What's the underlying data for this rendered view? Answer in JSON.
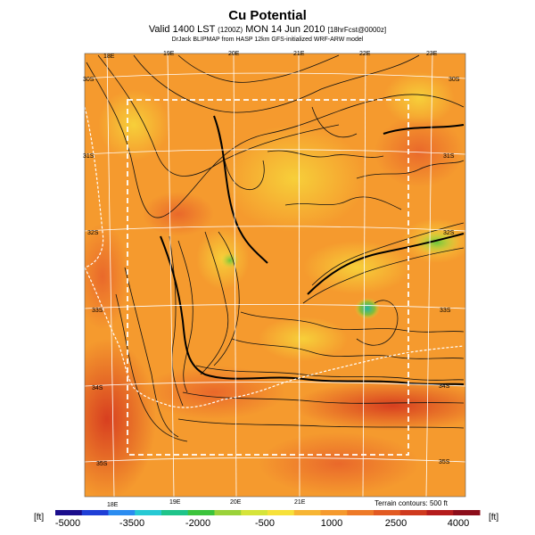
{
  "title": "Cu Potential",
  "subtitle_main": "Valid 1400 LST",
  "subtitle_small": "(1200Z)",
  "subtitle_date": "MON 14 Jun 2010",
  "subtitle_fcst": "[18hrFcst@0000z]",
  "credit": "DrJack BLIPMAP from HASP 12km GFS-initialized WRF-ARW model",
  "lon_labels": [
    "18E",
    "19E",
    "20E",
    "21E",
    "22E",
    "23E"
  ],
  "lat_labels": [
    "30S",
    "31S",
    "32S",
    "33S",
    "34S",
    "35S"
  ],
  "terrain_note": "Terrain contours: 500 ft",
  "colorbar": {
    "unit_left": "[ft]",
    "unit_right": "[ft]",
    "labels": [
      "-5000",
      "-3500",
      "-2000",
      "-500",
      "1000",
      "2500",
      "4000"
    ],
    "colors": [
      "#1a0d8c",
      "#1f3fd6",
      "#2b8cf0",
      "#27c9d4",
      "#1fc48a",
      "#3cc43c",
      "#9bd23a",
      "#d6e43a",
      "#f7e13a",
      "#f7b534",
      "#f59a2e",
      "#ee7a28",
      "#e25a22",
      "#cf3a1e",
      "#b51c1c",
      "#8c0d1a"
    ]
  },
  "colors": {
    "field_base": "#f59a2e",
    "field_high": "#e8632a",
    "field_low": "#f7c040",
    "green_spot": "#6cc43c",
    "cyan_spot": "#1fb4a8"
  }
}
